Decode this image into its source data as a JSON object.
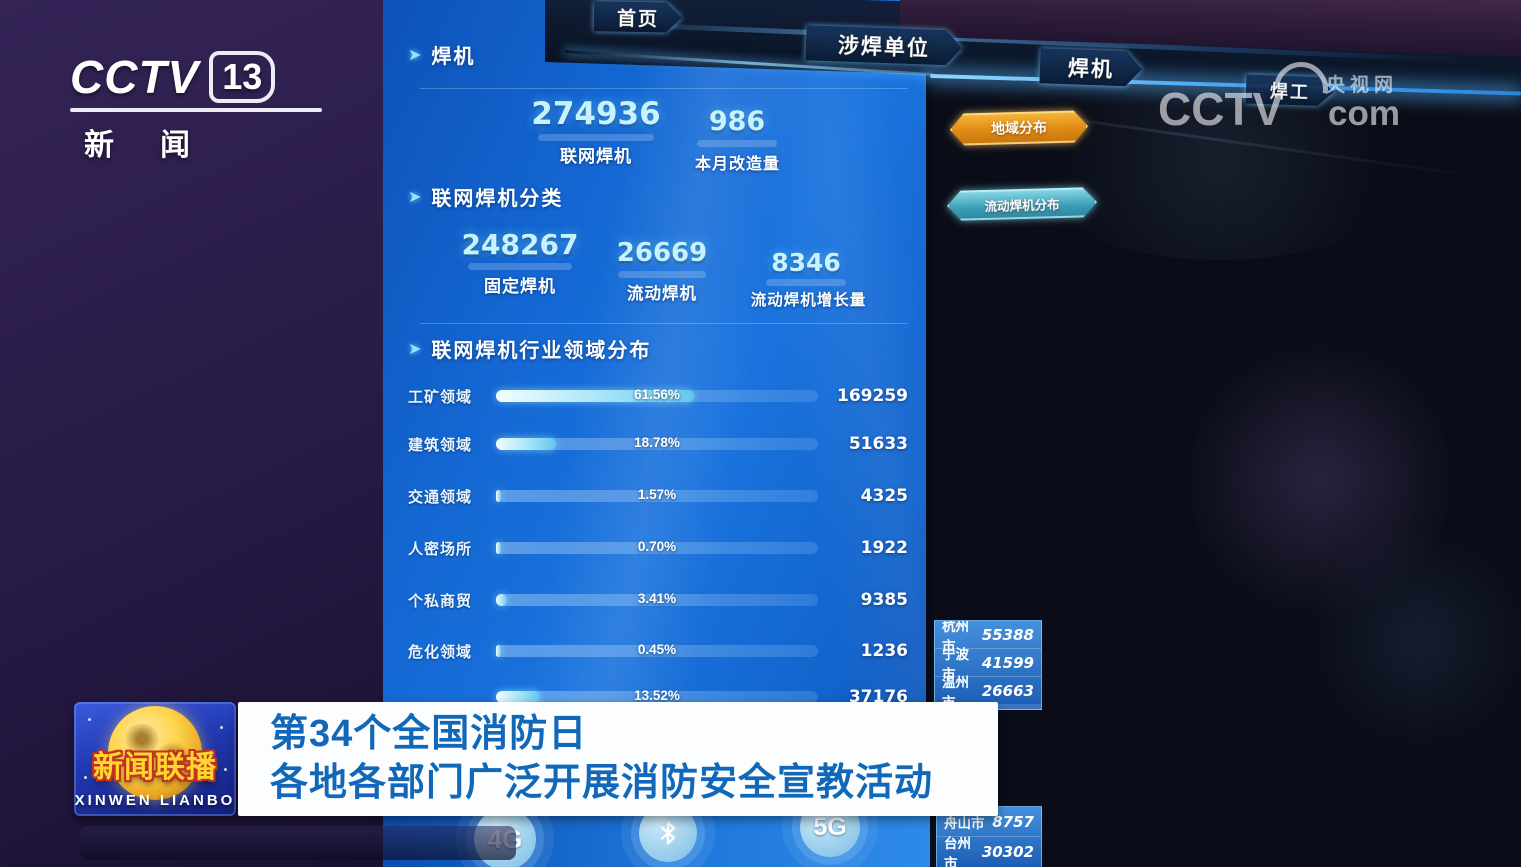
{
  "channel": {
    "brand": "CCTV",
    "number": "13",
    "name": "新闻"
  },
  "watermark": {
    "site": "央视网",
    "brand": "CCTV",
    "domain": "com"
  },
  "tabs": [
    "首页",
    "涉焊单位",
    "焊机",
    "焊工"
  ],
  "panel": {
    "section_welder": {
      "title": "焊机",
      "stats": [
        {
          "value": "274936",
          "label": "联网焊机"
        },
        {
          "value": "986",
          "label": "本月改造量"
        }
      ]
    },
    "section_category": {
      "title": "联网焊机分类",
      "stats": [
        {
          "value": "248267",
          "label": "固定焊机"
        },
        {
          "value": "26669",
          "label": "流动焊机"
        },
        {
          "value": "8346",
          "label": "流动焊机增长量"
        }
      ]
    },
    "section_industry": {
      "title": "联网焊机行业领域分布"
    }
  },
  "chart_data": {
    "type": "bar",
    "orientation": "horizontal",
    "title": "联网焊机行业领域分布",
    "categories": [
      "工矿领域",
      "建筑领域",
      "交通领域",
      "人密场所",
      "个私商贸",
      "危化领域",
      ""
    ],
    "values": [
      169259,
      51633,
      4325,
      1922,
      9385,
      1236,
      37176
    ],
    "percents": [
      61.56,
      18.78,
      1.57,
      0.7,
      3.41,
      0.45,
      13.52
    ],
    "percent_labels": [
      "61.56%",
      "18.78%",
      "1.57%",
      "0.70%",
      "3.41%",
      "0.45%",
      "13.52%"
    ],
    "value_labels": [
      "169259",
      "51633",
      "4325",
      "1922",
      "9385",
      "1236",
      "37176"
    ],
    "xlim": [
      0,
      100
    ],
    "legend": "none",
    "grid": false
  },
  "map_panel": {
    "buttons": [
      {
        "label": "地域分布",
        "color": "#e8961e"
      },
      {
        "label": "流动焊机分布",
        "color": "#49b8cc"
      }
    ],
    "cities_top": [
      {
        "name": "杭州市",
        "value": "55388"
      },
      {
        "name": "宁波市",
        "value": "41599"
      },
      {
        "name": "温州市",
        "value": "26663"
      }
    ],
    "cities_bottom": [
      {
        "name": "舟山市",
        "value": "8757"
      },
      {
        "name": "台州市",
        "value": "30302"
      }
    ]
  },
  "status_icons": [
    {
      "name": "4g-signal-icon",
      "label": "4G"
    },
    {
      "name": "bluetooth-icon",
      "label": ""
    },
    {
      "name": "5g-signal-icon",
      "label": "5G"
    }
  ],
  "lower_third": {
    "program": {
      "title": "新闻联播",
      "subtitle": "XINWEN LIANBO"
    },
    "headline_line1": "第34个全国消防日",
    "headline_line2": "各地各部门广泛开展消防安全宣教活动"
  }
}
